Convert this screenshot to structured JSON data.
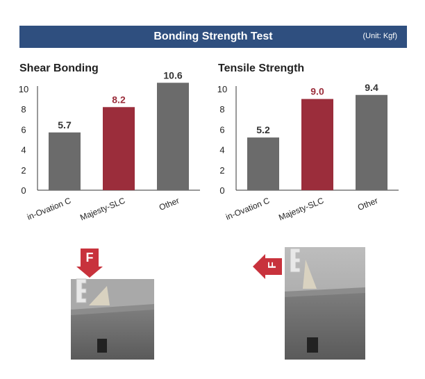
{
  "header": {
    "title": "Bonding Strength Test",
    "unit": "(Unit: Kgf)"
  },
  "colors": {
    "header_bg": "#2f4f7f",
    "bar_gray": "#6b6b6b",
    "bar_highlight": "#9b2d3b",
    "arrow": "#c8323c"
  },
  "chart_data": [
    {
      "type": "bar",
      "title": "Shear Bonding",
      "categories": [
        "in-Ovation C",
        "Majesty-SLC",
        "Other"
      ],
      "values": [
        5.7,
        8.2,
        10.6
      ],
      "value_labels": [
        "5.7",
        "8.2",
        "10.6"
      ],
      "highlight_index": 1,
      "ylim": [
        0,
        10
      ],
      "yticks": [
        "0",
        "2",
        "4",
        "6",
        "8",
        "10"
      ],
      "grid": false
    },
    {
      "type": "bar",
      "title": "Tensile Strength",
      "categories": [
        "in-Ovation C",
        "Majesty-SLC",
        "Other"
      ],
      "values": [
        5.2,
        9.0,
        9.4
      ],
      "value_labels": [
        "5.2",
        "9.0",
        "9.4"
      ],
      "highlight_index": 1,
      "ylim": [
        0,
        10
      ],
      "yticks": [
        "0",
        "2",
        "4",
        "6",
        "8",
        "10"
      ],
      "grid": false
    }
  ],
  "photos": [
    {
      "name": "shear-test-photo",
      "force_label": "F",
      "arrow_direction": "down"
    },
    {
      "name": "tensile-test-photo",
      "force_label": "F",
      "arrow_direction": "left"
    }
  ]
}
